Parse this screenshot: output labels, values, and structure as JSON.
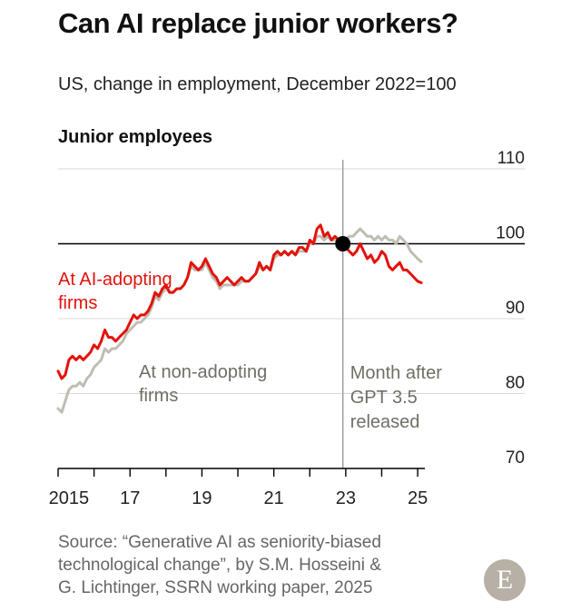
{
  "title": "Can AI replace junior workers?",
  "subtitle": "US, change in employment, December 2022=100",
  "panel_title": "Junior employees",
  "source_lines": [
    "Source: “Generative AI as seniority-biased",
    "technological change”, by S.M. Hosseini &",
    "G. Lichtinger, SSRN working paper, 2025"
  ],
  "logo_letter": "E",
  "colors": {
    "ai": "#e3120b",
    "non": "#c0bdb2",
    "axis": "#000000",
    "grid": "#d9d9d9",
    "event_line": "#9a9a9a",
    "label_gray": "#6f6f66"
  },
  "chart_data": {
    "type": "line",
    "ylim": [
      70,
      110
    ],
    "y_ticks": [
      70,
      80,
      90,
      100,
      110
    ],
    "x_range": [
      2015.0,
      2025.2
    ],
    "x_tick_positions": [
      2015,
      2016,
      2017,
      2018,
      2019,
      2020,
      2021,
      2022,
      2023,
      2024,
      2025
    ],
    "x_tick_labels": [
      {
        "x": 2015.3,
        "label": "2015"
      },
      {
        "x": 2017,
        "label": "17"
      },
      {
        "x": 2019,
        "label": "19"
      },
      {
        "x": 2021,
        "label": "21"
      },
      {
        "x": 2023,
        "label": "23"
      },
      {
        "x": 2025,
        "label": "25"
      }
    ],
    "reference_line": {
      "y": 100
    },
    "event": {
      "x": 2022.92,
      "y": 100,
      "label_lines": [
        "Month after",
        "GPT 3.5",
        "released"
      ]
    },
    "series": [
      {
        "name": "At AI-adopting firms",
        "label_lines": [
          "At AI-adopting",
          "firms"
        ],
        "color": "#e3120b",
        "x": [
          2015.0,
          2015.1,
          2015.2,
          2015.3,
          2015.4,
          2015.5,
          2015.6,
          2015.7,
          2015.8,
          2015.9,
          2016.0,
          2016.1,
          2016.2,
          2016.3,
          2016.4,
          2016.5,
          2016.6,
          2016.7,
          2016.8,
          2016.9,
          2017.0,
          2017.1,
          2017.2,
          2017.3,
          2017.4,
          2017.5,
          2017.6,
          2017.7,
          2017.8,
          2017.9,
          2018.0,
          2018.1,
          2018.2,
          2018.3,
          2018.4,
          2018.5,
          2018.6,
          2018.7,
          2018.8,
          2018.9,
          2019.0,
          2019.1,
          2019.2,
          2019.3,
          2019.4,
          2019.5,
          2019.6,
          2019.7,
          2019.8,
          2019.9,
          2020.0,
          2020.1,
          2020.2,
          2020.3,
          2020.4,
          2020.5,
          2020.6,
          2020.7,
          2020.8,
          2020.9,
          2021.0,
          2021.1,
          2021.2,
          2021.3,
          2021.4,
          2021.5,
          2021.6,
          2021.7,
          2021.8,
          2021.9,
          2022.0,
          2022.1,
          2022.2,
          2022.3,
          2022.4,
          2022.5,
          2022.6,
          2022.7,
          2022.8,
          2022.92,
          2023.0,
          2023.1,
          2023.2,
          2023.3,
          2023.4,
          2023.5,
          2023.6,
          2023.7,
          2023.8,
          2023.9,
          2024.0,
          2024.1,
          2024.2,
          2024.3,
          2024.4,
          2024.5,
          2024.6,
          2024.7,
          2024.8,
          2024.9,
          2025.0,
          2025.1
        ],
        "y": [
          83.0,
          82.0,
          82.5,
          84.5,
          85.0,
          84.5,
          85.0,
          84.5,
          85.0,
          85.5,
          86.5,
          86.0,
          87.0,
          88.5,
          87.5,
          87.5,
          87.0,
          87.5,
          88.0,
          88.5,
          89.5,
          90.5,
          90.0,
          90.5,
          90.5,
          91.0,
          92.0,
          93.5,
          93.0,
          94.0,
          94.5,
          93.5,
          93.5,
          94.0,
          94.0,
          94.5,
          95.5,
          97.5,
          97.0,
          96.5,
          97.0,
          98.0,
          97.0,
          96.0,
          95.5,
          94.5,
          95.0,
          95.5,
          95.0,
          94.5,
          95.0,
          95.5,
          95.0,
          95.0,
          95.5,
          96.0,
          97.5,
          96.5,
          97.0,
          96.5,
          98.5,
          99.0,
          98.5,
          99.0,
          98.5,
          99.0,
          98.5,
          99.5,
          99.5,
          99.0,
          100.5,
          100.0,
          102.0,
          102.5,
          101.0,
          101.5,
          100.5,
          101.0,
          100.5,
          100.0,
          99.5,
          99.0,
          98.5,
          99.0,
          100.0,
          99.0,
          98.0,
          98.5,
          97.5,
          98.0,
          99.0,
          98.5,
          97.0,
          96.5,
          97.0,
          97.5,
          96.5,
          96.5,
          96.0,
          95.5,
          95.0,
          94.8
        ]
      },
      {
        "name": "At non-adopting firms",
        "label_lines": [
          "At non-adopting",
          "firms"
        ],
        "color": "#c0bdb2",
        "x": [
          2015.0,
          2015.1,
          2015.2,
          2015.3,
          2015.4,
          2015.5,
          2015.6,
          2015.7,
          2015.8,
          2015.9,
          2016.0,
          2016.1,
          2016.2,
          2016.3,
          2016.4,
          2016.5,
          2016.6,
          2016.7,
          2016.8,
          2016.9,
          2017.0,
          2017.1,
          2017.2,
          2017.3,
          2017.4,
          2017.5,
          2017.6,
          2017.7,
          2017.8,
          2017.9,
          2018.0,
          2018.1,
          2018.2,
          2018.3,
          2018.4,
          2018.5,
          2018.6,
          2018.7,
          2018.8,
          2018.9,
          2019.0,
          2019.1,
          2019.2,
          2019.3,
          2019.4,
          2019.5,
          2019.6,
          2019.7,
          2019.8,
          2019.9,
          2020.0,
          2020.1,
          2020.2,
          2020.3,
          2020.4,
          2020.5,
          2020.6,
          2020.7,
          2020.8,
          2020.9,
          2021.0,
          2021.1,
          2021.2,
          2021.3,
          2021.4,
          2021.5,
          2021.6,
          2021.7,
          2021.8,
          2021.9,
          2022.0,
          2022.1,
          2022.2,
          2022.3,
          2022.4,
          2022.5,
          2022.6,
          2022.7,
          2022.8,
          2022.92,
          2023.0,
          2023.1,
          2023.2,
          2023.3,
          2023.4,
          2023.5,
          2023.6,
          2023.7,
          2023.8,
          2023.9,
          2024.0,
          2024.1,
          2024.2,
          2024.3,
          2024.4,
          2024.5,
          2024.6,
          2024.7,
          2024.8,
          2024.9,
          2025.0,
          2025.1
        ],
        "y": [
          78.0,
          77.5,
          79.0,
          80.5,
          81.0,
          81.0,
          81.5,
          81.0,
          82.0,
          82.5,
          83.5,
          84.0,
          84.5,
          86.0,
          85.5,
          86.0,
          86.0,
          86.5,
          87.0,
          88.0,
          88.5,
          89.0,
          89.5,
          89.5,
          90.0,
          90.5,
          91.5,
          93.0,
          92.5,
          93.5,
          94.0,
          93.5,
          93.5,
          94.0,
          94.0,
          94.5,
          95.5,
          97.0,
          96.5,
          96.5,
          96.5,
          97.5,
          96.5,
          95.5,
          95.0,
          94.0,
          94.5,
          94.5,
          94.5,
          94.5,
          94.5,
          95.0,
          95.0,
          95.0,
          95.5,
          96.0,
          97.0,
          96.5,
          97.0,
          96.5,
          98.0,
          98.5,
          98.5,
          99.0,
          98.5,
          99.0,
          98.5,
          99.0,
          99.0,
          99.0,
          100.0,
          100.0,
          101.0,
          101.0,
          100.5,
          101.0,
          100.5,
          100.5,
          100.5,
          100.0,
          100.5,
          101.0,
          101.0,
          101.5,
          102.0,
          101.5,
          101.0,
          101.0,
          100.5,
          101.0,
          100.5,
          101.0,
          100.5,
          100.5,
          100.0,
          101.0,
          100.5,
          100.0,
          99.0,
          98.5,
          98.0,
          97.6
        ]
      }
    ]
  }
}
